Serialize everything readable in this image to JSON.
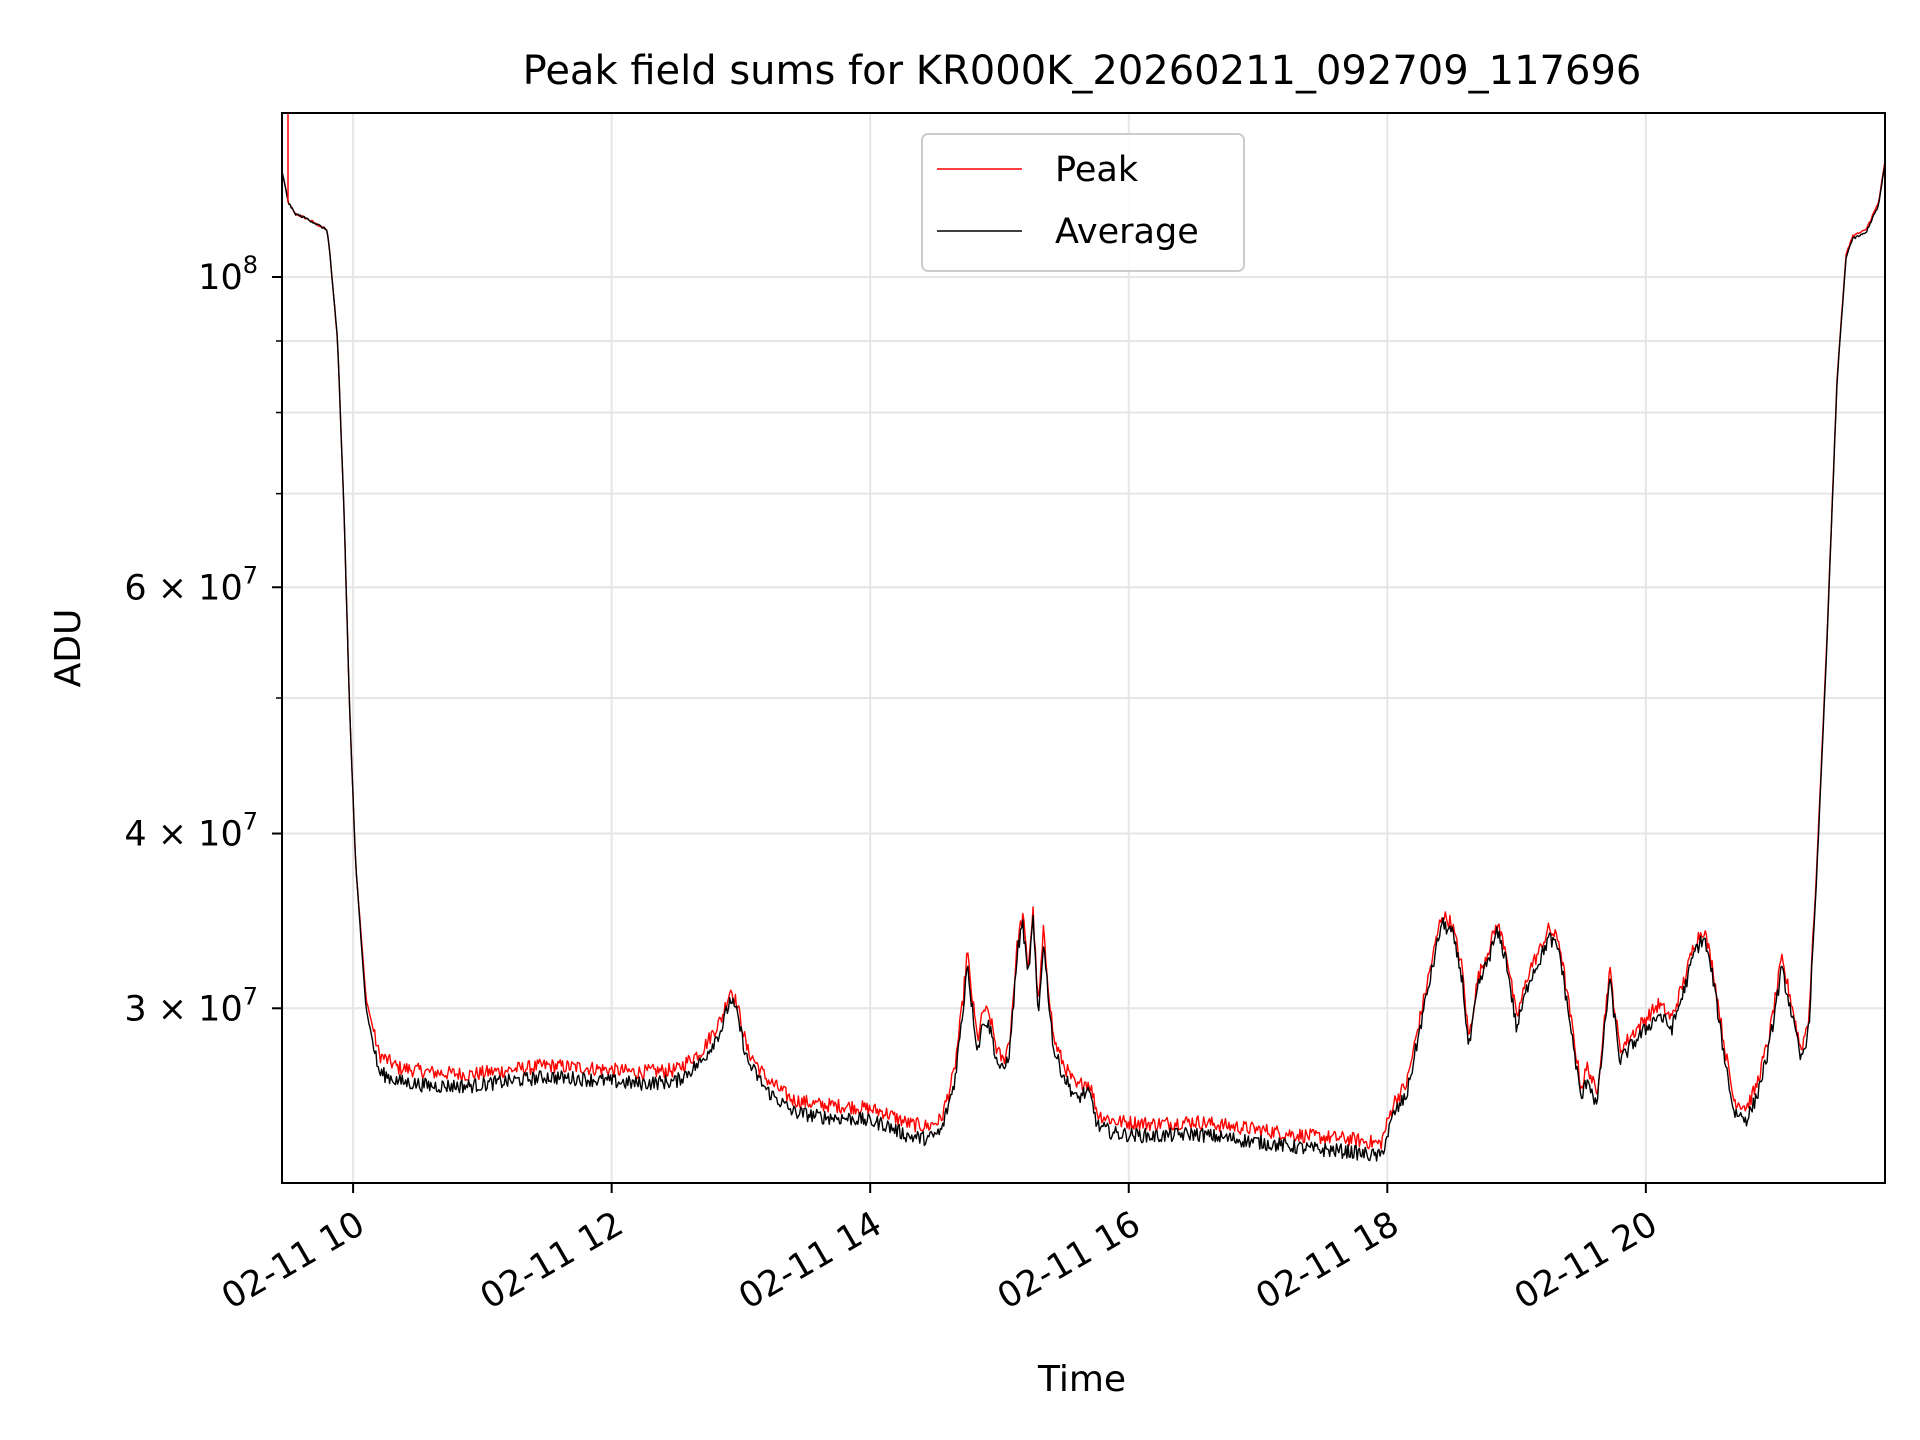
{
  "chart_data": {
    "type": "line",
    "title": "Peak field sums for KR000K_20260211_092709_117696",
    "xlabel": "Time",
    "ylabel": "ADU",
    "y_scale": "log",
    "xlim": [
      9.45,
      21.85
    ],
    "ylim": [
      22500000,
      131000000
    ],
    "grid": true,
    "legend_position": "top-center",
    "x_ticks": [
      {
        "value": 10,
        "label": "02-11 10"
      },
      {
        "value": 12,
        "label": "02-11 12"
      },
      {
        "value": 14,
        "label": "02-11 14"
      },
      {
        "value": 16,
        "label": "02-11 16"
      },
      {
        "value": 18,
        "label": "02-11 18"
      },
      {
        "value": 20,
        "label": "02-11 20"
      }
    ],
    "y_major_ticks": [
      {
        "value": 30000000,
        "base": "3",
        "exp": "7"
      },
      {
        "value": 40000000,
        "base": "4",
        "exp": "7"
      },
      {
        "value": 60000000,
        "base": "6",
        "exp": "7"
      },
      {
        "value": 100000000,
        "base": "10",
        "exp": "8"
      }
    ],
    "y_times_symbol": "×",
    "y_minor_ticks": [
      50000000,
      70000000,
      80000000,
      90000000
    ],
    "series": [
      {
        "name": "Peak",
        "color": "#ff0000",
        "points": [
          [
            9.45,
            119000000
          ],
          [
            9.5,
            113000000
          ],
          [
            9.55,
            111000000
          ],
          [
            9.65,
            110000000
          ],
          [
            9.8,
            108000000
          ],
          [
            9.82,
            104000000
          ],
          [
            9.88,
            90000000
          ],
          [
            9.93,
            68000000
          ],
          [
            9.97,
            50000000
          ],
          [
            10.02,
            38000000
          ],
          [
            10.1,
            30500000
          ],
          [
            10.2,
            27800000
          ],
          [
            10.35,
            27200000
          ],
          [
            10.6,
            27000000
          ],
          [
            10.9,
            26900000
          ],
          [
            11.2,
            27100000
          ],
          [
            11.5,
            27300000
          ],
          [
            11.8,
            27200000
          ],
          [
            12.2,
            27000000
          ],
          [
            12.5,
            27100000
          ],
          [
            12.7,
            28000000
          ],
          [
            12.85,
            29500000
          ],
          [
            12.92,
            31000000
          ],
          [
            12.97,
            30200000
          ],
          [
            13.05,
            28000000
          ],
          [
            13.2,
            26700000
          ],
          [
            13.4,
            25800000
          ],
          [
            13.6,
            25600000
          ],
          [
            13.9,
            25500000
          ],
          [
            14.1,
            25300000
          ],
          [
            14.3,
            24800000
          ],
          [
            14.45,
            24700000
          ],
          [
            14.55,
            25000000
          ],
          [
            14.65,
            27000000
          ],
          [
            14.72,
            30500000
          ],
          [
            14.75,
            33000000
          ],
          [
            14.78,
            31000000
          ],
          [
            14.83,
            28500000
          ],
          [
            14.88,
            30000000
          ],
          [
            14.93,
            29500000
          ],
          [
            14.98,
            28000000
          ],
          [
            15.03,
            27500000
          ],
          [
            15.08,
            28500000
          ],
          [
            15.14,
            33500000
          ],
          [
            15.18,
            35000000
          ],
          [
            15.22,
            32000000
          ],
          [
            15.26,
            35200000
          ],
          [
            15.3,
            30000000
          ],
          [
            15.34,
            34000000
          ],
          [
            15.38,
            31000000
          ],
          [
            15.42,
            28500000
          ],
          [
            15.5,
            27300000
          ],
          [
            15.6,
            26300000
          ],
          [
            15.65,
            26600000
          ],
          [
            15.7,
            26500000
          ],
          [
            15.76,
            25200000
          ],
          [
            15.9,
            24900000
          ],
          [
            16.2,
            24800000
          ],
          [
            16.5,
            24900000
          ],
          [
            16.8,
            24700000
          ],
          [
            17.1,
            24500000
          ],
          [
            17.4,
            24300000
          ],
          [
            17.7,
            24200000
          ],
          [
            17.95,
            24000000
          ],
          [
            18.05,
            25700000
          ],
          [
            18.15,
            26500000
          ],
          [
            18.3,
            31000000
          ],
          [
            18.42,
            35000000
          ],
          [
            18.5,
            34500000
          ],
          [
            18.58,
            32000000
          ],
          [
            18.63,
            28500000
          ],
          [
            18.7,
            31500000
          ],
          [
            18.78,
            33000000
          ],
          [
            18.85,
            34500000
          ],
          [
            18.92,
            33000000
          ],
          [
            19.0,
            29500000
          ],
          [
            19.1,
            32000000
          ],
          [
            19.18,
            33000000
          ],
          [
            19.25,
            34200000
          ],
          [
            19.33,
            33500000
          ],
          [
            19.42,
            29500000
          ],
          [
            19.5,
            26300000
          ],
          [
            19.55,
            27300000
          ],
          [
            19.62,
            26000000
          ],
          [
            19.72,
            32000000
          ],
          [
            19.8,
            28000000
          ],
          [
            19.9,
            28800000
          ],
          [
            20.0,
            29500000
          ],
          [
            20.1,
            30200000
          ],
          [
            20.2,
            29500000
          ],
          [
            20.3,
            31500000
          ],
          [
            20.38,
            33500000
          ],
          [
            20.45,
            34200000
          ],
          [
            20.52,
            32000000
          ],
          [
            20.6,
            28500000
          ],
          [
            20.68,
            25800000
          ],
          [
            20.78,
            25500000
          ],
          [
            20.85,
            26300000
          ],
          [
            20.95,
            28500000
          ],
          [
            21.05,
            32500000
          ],
          [
            21.12,
            30500000
          ],
          [
            21.2,
            28000000
          ],
          [
            21.26,
            29500000
          ],
          [
            21.32,
            37500000
          ],
          [
            21.4,
            55000000
          ],
          [
            21.48,
            85000000
          ],
          [
            21.55,
            104000000
          ],
          [
            21.6,
            107000000
          ],
          [
            21.7,
            108000000
          ],
          [
            21.8,
            113000000
          ],
          [
            21.85,
            121000000
          ]
        ]
      },
      {
        "name": "Average",
        "color": "#000000",
        "points": [
          [
            9.45,
            119000000
          ],
          [
            9.5,
            113000000
          ],
          [
            9.55,
            111000000
          ],
          [
            9.65,
            110000000
          ],
          [
            9.8,
            108000000
          ],
          [
            9.82,
            104000000
          ],
          [
            9.88,
            90000000
          ],
          [
            9.93,
            68000000
          ],
          [
            9.97,
            50000000
          ],
          [
            10.02,
            38000000
          ],
          [
            10.1,
            30000000
          ],
          [
            10.2,
            27000000
          ],
          [
            10.35,
            26600000
          ],
          [
            10.6,
            26400000
          ],
          [
            10.9,
            26400000
          ],
          [
            11.2,
            26600000
          ],
          [
            11.5,
            26800000
          ],
          [
            11.8,
            26700000
          ],
          [
            12.2,
            26500000
          ],
          [
            12.5,
            26600000
          ],
          [
            12.7,
            27500000
          ],
          [
            12.85,
            29000000
          ],
          [
            12.92,
            30500000
          ],
          [
            12.97,
            29700000
          ],
          [
            13.05,
            27500000
          ],
          [
            13.2,
            26200000
          ],
          [
            13.4,
            25300000
          ],
          [
            13.6,
            25100000
          ],
          [
            13.9,
            25000000
          ],
          [
            14.1,
            24800000
          ],
          [
            14.3,
            24300000
          ],
          [
            14.45,
            24200000
          ],
          [
            14.55,
            24500000
          ],
          [
            14.65,
            26500000
          ],
          [
            14.72,
            30000000
          ],
          [
            14.75,
            32500000
          ],
          [
            14.78,
            30500000
          ],
          [
            14.83,
            28000000
          ],
          [
            14.88,
            29500000
          ],
          [
            14.93,
            29000000
          ],
          [
            14.98,
            27500000
          ],
          [
            15.03,
            27000000
          ],
          [
            15.08,
            28000000
          ],
          [
            15.14,
            33000000
          ],
          [
            15.18,
            34500000
          ],
          [
            15.22,
            31500000
          ],
          [
            15.26,
            34700000
          ],
          [
            15.3,
            29500000
          ],
          [
            15.34,
            33500000
          ],
          [
            15.38,
            30500000
          ],
          [
            15.42,
            28000000
          ],
          [
            15.5,
            26800000
          ],
          [
            15.6,
            25800000
          ],
          [
            15.65,
            26100000
          ],
          [
            15.7,
            26000000
          ],
          [
            15.76,
            24700000
          ],
          [
            15.9,
            24400000
          ],
          [
            16.2,
            24300000
          ],
          [
            16.5,
            24400000
          ],
          [
            16.8,
            24200000
          ],
          [
            17.1,
            24000000
          ],
          [
            17.4,
            23800000
          ],
          [
            17.7,
            23700000
          ],
          [
            17.95,
            23500000
          ],
          [
            18.05,
            25200000
          ],
          [
            18.15,
            26000000
          ],
          [
            18.3,
            30500000
          ],
          [
            18.42,
            34500000
          ],
          [
            18.5,
            34000000
          ],
          [
            18.58,
            31500000
          ],
          [
            18.63,
            28000000
          ],
          [
            18.7,
            31000000
          ],
          [
            18.78,
            32500000
          ],
          [
            18.85,
            34000000
          ],
          [
            18.92,
            32500000
          ],
          [
            19.0,
            29000000
          ],
          [
            19.1,
            31500000
          ],
          [
            19.18,
            32500000
          ],
          [
            19.25,
            33700000
          ],
          [
            19.33,
            33000000
          ],
          [
            19.42,
            29000000
          ],
          [
            19.5,
            25800000
          ],
          [
            19.55,
            26800000
          ],
          [
            19.62,
            25500000
          ],
          [
            19.72,
            31500000
          ],
          [
            19.8,
            27500000
          ],
          [
            19.9,
            28300000
          ],
          [
            20.0,
            29000000
          ],
          [
            20.1,
            29700000
          ],
          [
            20.2,
            29000000
          ],
          [
            20.3,
            31000000
          ],
          [
            20.38,
            33000000
          ],
          [
            20.45,
            33700000
          ],
          [
            20.52,
            31500000
          ],
          [
            20.6,
            28000000
          ],
          [
            20.68,
            25300000
          ],
          [
            20.78,
            25000000
          ],
          [
            20.85,
            25800000
          ],
          [
            20.95,
            28000000
          ],
          [
            21.05,
            32000000
          ],
          [
            21.12,
            30000000
          ],
          [
            21.2,
            27500000
          ],
          [
            21.26,
            29000000
          ],
          [
            21.32,
            37000000
          ],
          [
            21.4,
            54500000
          ],
          [
            21.48,
            84500000
          ],
          [
            21.55,
            103500000
          ],
          [
            21.6,
            106500000
          ],
          [
            21.7,
            107500000
          ],
          [
            21.8,
            112500000
          ],
          [
            21.85,
            120500000
          ]
        ]
      }
    ]
  }
}
